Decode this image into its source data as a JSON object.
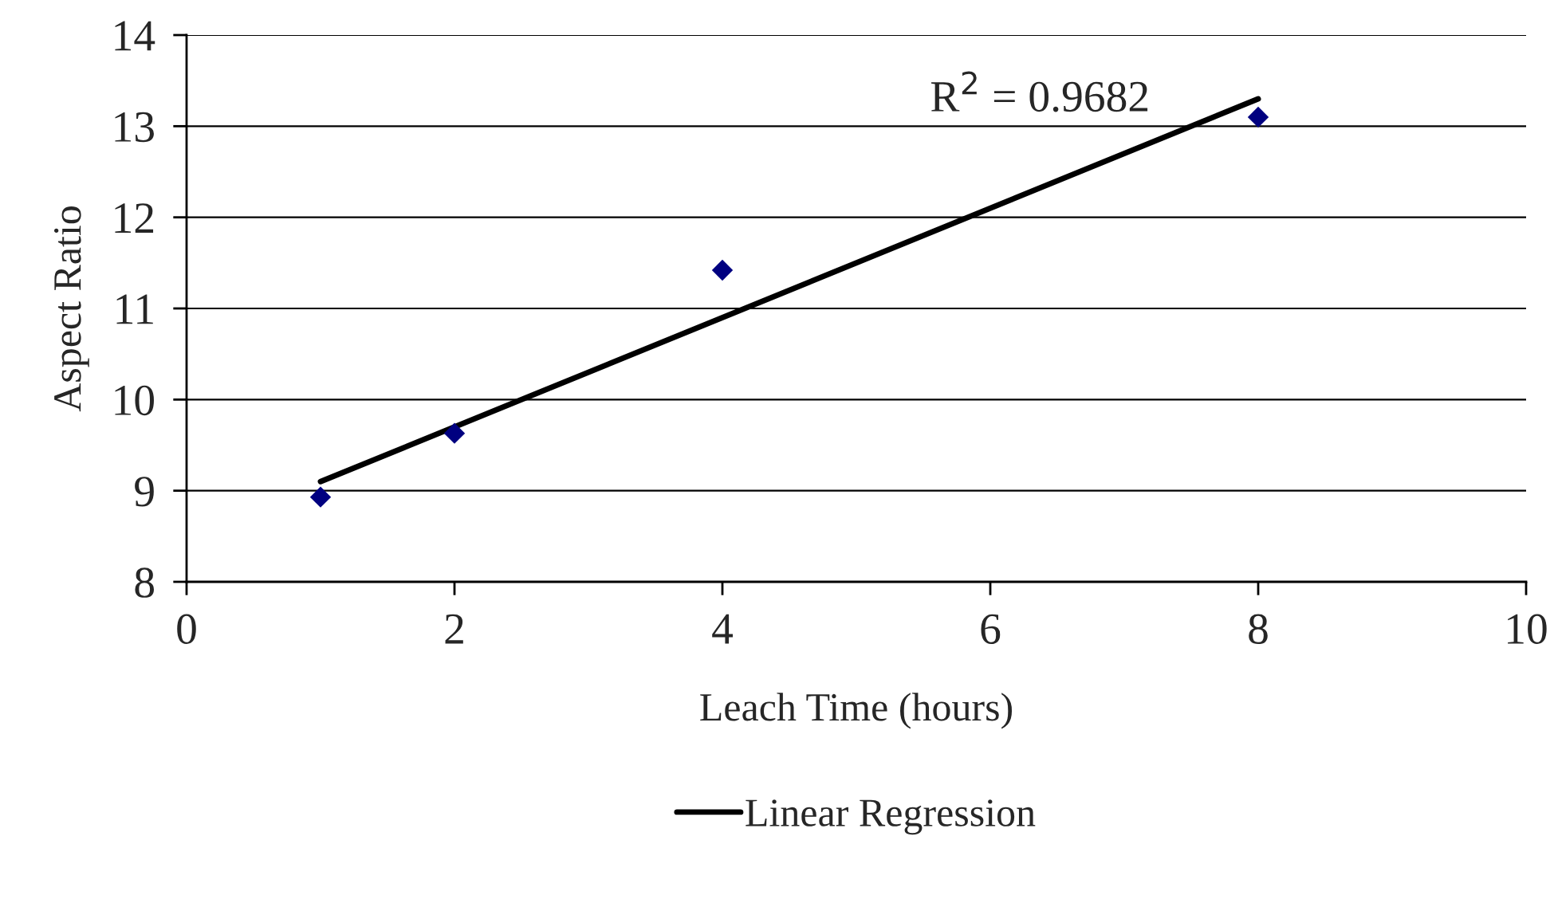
{
  "chart_data": {
    "type": "scatter",
    "xlabel": "Leach Time (hours)",
    "ylabel": "Aspect Ratio",
    "annotations": [
      "R$^{2}$ = 0.9682"
    ],
    "series": [
      {
        "color": "#000080",
        "marker": "diamond",
        "x": [
          1,
          2,
          4,
          8
        ],
        "values": [
          8.93,
          9.63,
          11.42,
          13.1
        ]
      },
      {
        "type": "line",
        "name": "Linear Regression",
        "color": "#000000",
        "marker": "none",
        "line_style": "solid",
        "x": [
          1,
          8
        ],
        "values": [
          9.1,
          13.3
        ]
      }
    ],
    "xlim": [
      0,
      10
    ],
    "xticks": [
      0,
      2,
      4,
      6,
      8,
      10
    ],
    "ylim": [
      8,
      14
    ],
    "yticks": [
      8,
      9,
      10,
      11,
      12,
      13,
      14
    ],
    "grid": "y",
    "legend": "bottom"
  }
}
